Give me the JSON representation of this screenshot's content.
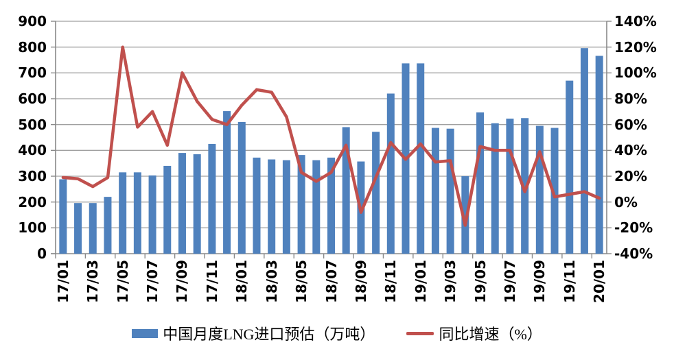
{
  "chart_data": {
    "type": "bar+line combo",
    "categories": [
      "17/01",
      "17/02",
      "17/03",
      "17/04",
      "17/05",
      "17/06",
      "17/07",
      "17/08",
      "17/09",
      "17/10",
      "17/11",
      "17/12",
      "18/01",
      "18/02",
      "18/03",
      "18/04",
      "18/05",
      "18/06",
      "18/07",
      "18/08",
      "18/09",
      "18/10",
      "18/11",
      "18/12",
      "19/01",
      "19/02",
      "19/03",
      "19/04",
      "19/05",
      "19/06",
      "19/07",
      "19/08",
      "19/09",
      "19/10",
      "19/11",
      "19/12",
      "20/01"
    ],
    "x_tick_labels_shown": [
      "17/01",
      "17/03",
      "17/05",
      "17/07",
      "17/09",
      "17/11",
      "18/01",
      "18/03",
      "18/05",
      "18/07",
      "18/09",
      "18/11",
      "19/01",
      "19/03",
      "19/05",
      "19/07",
      "19/09",
      "19/11",
      "20/01"
    ],
    "x_label_interval": 2,
    "series": [
      {
        "name": "中国月度LNG进口预估（万吨）",
        "type": "bar",
        "axis": "left",
        "values": [
          288,
          196,
          196,
          220,
          315,
          315,
          303,
          340,
          390,
          385,
          425,
          552,
          510,
          372,
          365,
          362,
          382,
          362,
          372,
          490,
          357,
          472,
          620,
          737,
          737,
          487,
          484,
          300,
          547,
          505,
          523,
          525,
          495,
          487,
          670,
          796,
          766
        ]
      },
      {
        "name": "同比增速（%）",
        "type": "line",
        "axis": "right",
        "values": [
          19,
          18,
          12,
          19,
          120,
          58,
          70,
          44,
          100,
          78,
          64,
          60,
          75,
          87,
          85,
          66,
          23,
          16,
          23,
          44,
          -8,
          19,
          46,
          33,
          45,
          31,
          32,
          -18,
          43,
          40,
          40,
          8,
          39,
          4,
          6,
          8,
          3
        ]
      }
    ],
    "left_axis": {
      "min": 0,
      "max": 900,
      "step": 100,
      "tick_labels": [
        "0",
        "100",
        "200",
        "300",
        "400",
        "500",
        "600",
        "700",
        "800",
        "900"
      ]
    },
    "right_axis": {
      "min": -40,
      "max": 140,
      "step": 20,
      "tick_labels": [
        "-40%",
        "-20%",
        "0%",
        "20%",
        "40%",
        "60%",
        "80%",
        "100%",
        "120%",
        "140%"
      ]
    },
    "grid": true,
    "legend_position": "bottom"
  },
  "legend": {
    "bar_label": "中国月度LNG进口预估（万吨）",
    "line_label": "同比增速（%）"
  },
  "colors": {
    "bar": "#4F81BD",
    "line": "#C0504D",
    "gridline": "#A0A0A0",
    "axis": "#898989",
    "text": "#000000",
    "background": "#FFFFFF"
  }
}
